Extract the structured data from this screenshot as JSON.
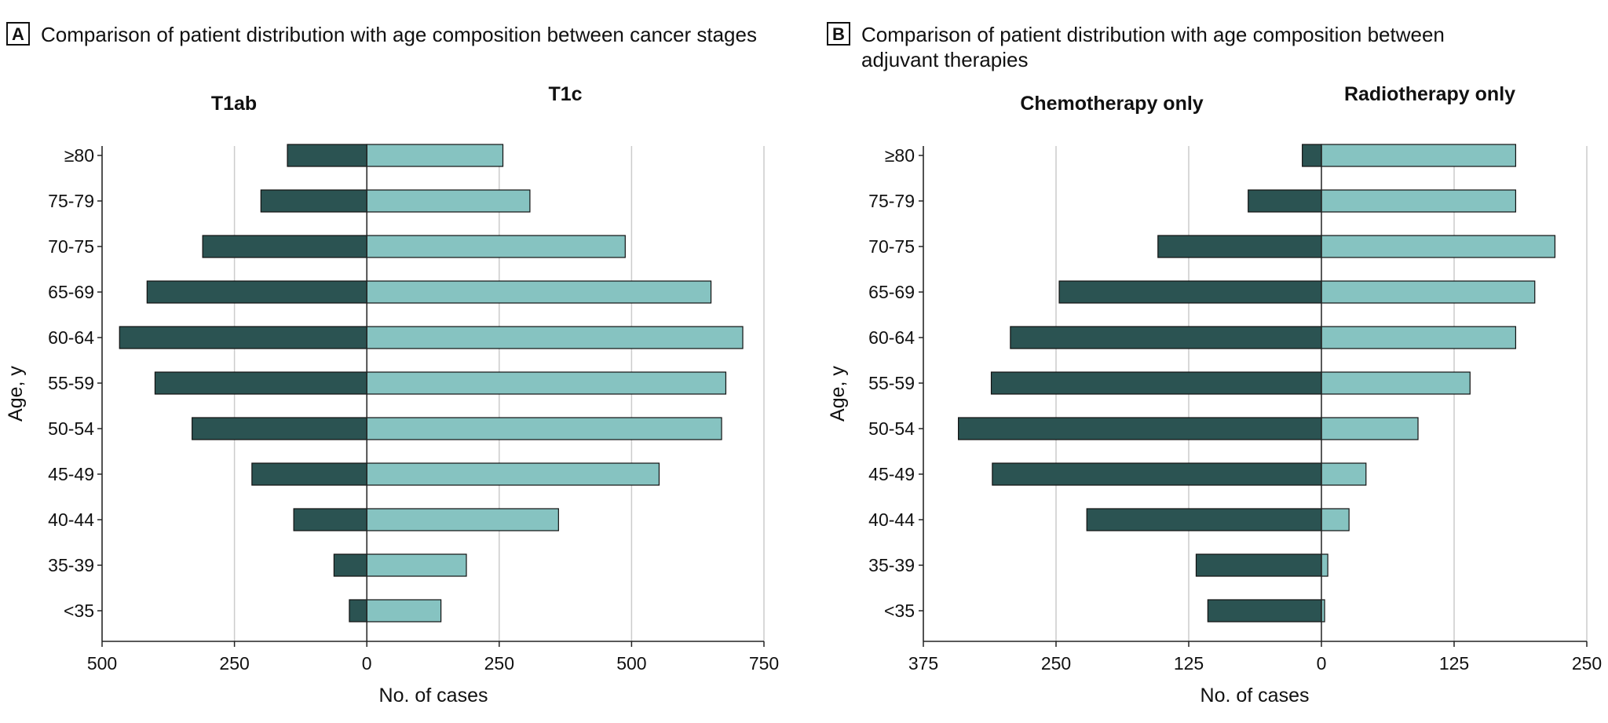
{
  "colors": {
    "left_series": "#2b5352",
    "right_series": "#86c3c1",
    "grid": "#cccccc",
    "axis": "#222222"
  },
  "chart_data": [
    {
      "type": "bar",
      "orientation": "horizontal-diverging",
      "panel_letter": "A",
      "title": "Comparison of patient distribution with age composition between cancer stages",
      "xlabel": "No. of cases",
      "ylabel": "Age, y",
      "categories": [
        "≥80",
        "75-79",
        "70-75",
        "65-69",
        "60-64",
        "55-59",
        "50-54",
        "45-49",
        "40-44",
        "35-39",
        "<35"
      ],
      "series": [
        {
          "name": "T1ab",
          "side": "left",
          "values": [
            150,
            200,
            310,
            415,
            467,
            400,
            330,
            217,
            138,
            62,
            33
          ]
        },
        {
          "name": "T1c",
          "side": "right",
          "values": [
            257,
            308,
            488,
            650,
            710,
            678,
            670,
            552,
            362,
            188,
            140
          ]
        }
      ],
      "xlim": [
        -500,
        750
      ],
      "xticks": [
        -500,
        -250,
        0,
        250,
        500,
        750
      ],
      "xtick_labels": [
        "500",
        "250",
        "0",
        "250",
        "500",
        "750"
      ],
      "grid": true
    },
    {
      "type": "bar",
      "orientation": "horizontal-diverging",
      "panel_letter": "B",
      "title": "Comparison of patient distribution with age composition between adjuvant therapies",
      "xlabel": "No. of cases",
      "ylabel": "Age, y",
      "categories": [
        "≥80",
        "75-79",
        "70-75",
        "65-69",
        "60-64",
        "55-59",
        "50-54",
        "45-49",
        "40-44",
        "35-39",
        "<35"
      ],
      "series": [
        {
          "name": "Chemotherapy only",
          "side": "left",
          "values": [
            18,
            69,
            154,
            247,
            293,
            311,
            342,
            310,
            221,
            118,
            107
          ]
        },
        {
          "name": "Radiotherapy only",
          "side": "right",
          "values": [
            183,
            183,
            220,
            201,
            183,
            140,
            91,
            42,
            26,
            6,
            3
          ]
        }
      ],
      "xlim": [
        -375,
        250
      ],
      "xticks": [
        -375,
        -250,
        -125,
        0,
        125,
        250
      ],
      "xtick_labels": [
        "375",
        "250",
        "125",
        "0",
        "125",
        "250"
      ],
      "grid": true
    }
  ]
}
